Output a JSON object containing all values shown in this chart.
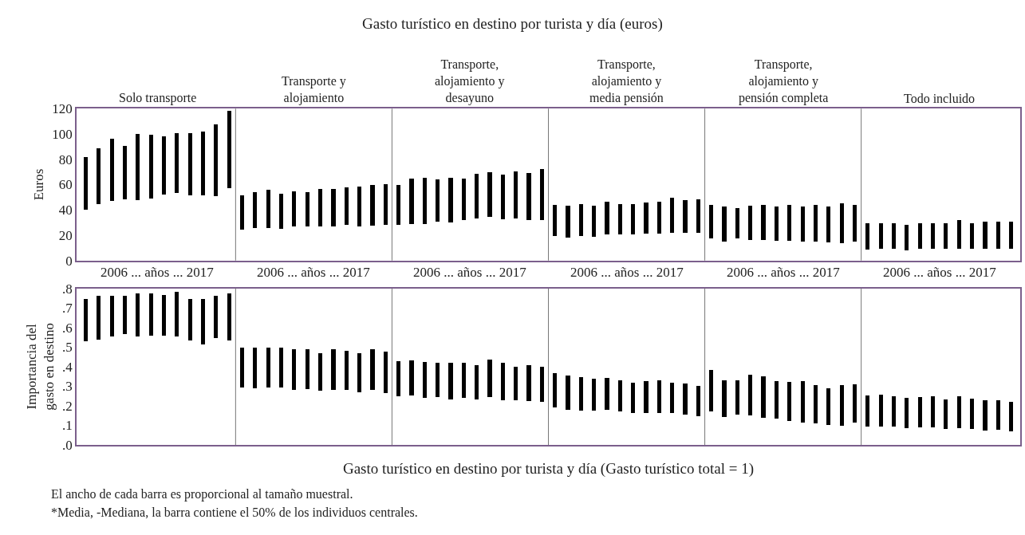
{
  "chart_data": [
    {
      "type": "bar",
      "title": "Gasto turístico en destino por turista y día (euros)",
      "ylabel": "Euros",
      "annotations": [
        "Solo transporte",
        "Transporte y alojamiento",
        "Transporte, alojamiento y desayuno",
        "Transporte, alojamiento y media pensión",
        "Transporte, alojamiento y pensión completa",
        "Todo incluido",
        "2006 ... años ... 2017",
        "2006 ... años ... 2017",
        "2006 ... años ... 2017",
        "2006 ... años ... 2017",
        "2006 ... años ... 2017",
        "2006 ... años ... 2017"
      ],
      "categories": [
        null,
        null,
        null,
        null,
        null,
        null,
        null,
        null,
        null,
        null,
        null,
        null,
        null,
        null,
        null,
        null,
        null,
        null,
        null,
        null,
        null,
        null,
        null,
        null,
        null,
        null,
        null,
        null,
        null,
        null,
        null,
        null,
        null,
        null,
        null,
        null,
        null,
        null,
        null,
        null,
        null,
        null,
        null,
        null,
        null,
        null,
        null,
        null,
        null,
        null,
        null,
        null,
        null,
        null,
        null,
        null,
        null,
        null,
        null,
        null,
        null,
        null,
        null,
        null,
        null,
        null,
        null,
        null,
        null,
        null,
        null,
        null
      ],
      "base": [
        40.1,
        44.2,
        46.7,
        47.9,
        47.7,
        48.5,
        52.2,
        53.2,
        51.6,
        51.6,
        50.8,
        57.1,
        24.0,
        25.2,
        25.8,
        25.0,
        26.6,
        26.6,
        26.8,
        26.6,
        27.9,
        26.8,
        27.6,
        27.9,
        28.3,
        28.7,
        28.7,
        30.3,
        30.1,
        31.5,
        32.8,
        34.0,
        32.6,
        33.2,
        31.9,
        31.7,
        19.0,
        17.8,
        19.5,
        18.8,
        20.5,
        20.3,
        20.3,
        20.9,
        20.9,
        21.5,
        21.5,
        21.5,
        17.6,
        14.5,
        17.0,
        16.0,
        16.0,
        15.4,
        15.4,
        14.5,
        14.5,
        14.3,
        13.3,
        14.5,
        8.4,
        8.8,
        9.4,
        7.8,
        8.8,
        9.2,
        8.8,
        9.4,
        9.2,
        8.8,
        8.8,
        8.8
      ],
      "values": [
        41.4,
        44.1,
        49.6,
        42.6,
        52.4,
        50.4,
        45.7,
        47.2,
        48.8,
        50.2,
        56.5,
        60.9,
        27.2,
        28.7,
        29.9,
        27.8,
        27.7,
        27.1,
        29.5,
        29.5,
        29.6,
        31.6,
        32.2,
        32.5,
        30.9,
        35.8,
        36.2,
        33.6,
        35.4,
        33.2,
        35.6,
        35.6,
        35.0,
        37.0,
        37.1,
        40.2,
        24.6,
        25.6,
        24.9,
        24.6,
        25.8,
        24.1,
        24.1,
        24.8,
        25.6,
        27.7,
        26.2,
        26.8,
        26.0,
        27.7,
        24.4,
        27.4,
        27.6,
        27.2,
        28.2,
        27.7,
        29.1,
        28.1,
        31.8,
        29.5,
        20.7,
        20.5,
        19.9,
        20.3,
        20.5,
        20.1,
        20.5,
        22.5,
        20.1,
        21.9,
        21.9,
        21.9
      ],
      "color": "#000000",
      "ylim": [
        0,
        120
      ],
      "yticks": [
        0,
        20,
        40,
        60,
        80,
        100,
        120
      ],
      "tick_labels": "y"
    },
    {
      "type": "bar",
      "ylabel": "Importancia del gasto en destino",
      "xlabel": "Gasto turístico en destino por turista y día (Gasto turístico total = 1)",
      "annotations": [
        "El ancho de cada barra es proporcional al tamaño muestral.",
        "*Media, -Mediana, la barra contiene el 50% de los individuos centrales."
      ],
      "categories": [
        null,
        null,
        null,
        null,
        null,
        null,
        null,
        null,
        null,
        null,
        null,
        null,
        null,
        null,
        null,
        null,
        null,
        null,
        null,
        null,
        null,
        null,
        null,
        null,
        null,
        null,
        null,
        null,
        null,
        null,
        null,
        null,
        null,
        null,
        null,
        null,
        null,
        null,
        null,
        null,
        null,
        null,
        null,
        null,
        null,
        null,
        null,
        null,
        null,
        null,
        null,
        null,
        null,
        null,
        null,
        null,
        null,
        null,
        null,
        null,
        null,
        null,
        null,
        null,
        null,
        null,
        null,
        null,
        null,
        null,
        null,
        null
      ],
      "base": [
        0.529,
        0.54,
        0.554,
        0.568,
        0.554,
        0.558,
        0.558,
        0.554,
        0.536,
        0.513,
        0.547,
        0.536,
        0.294,
        0.291,
        0.294,
        0.295,
        0.284,
        0.287,
        0.277,
        0.283,
        0.283,
        0.27,
        0.281,
        0.268,
        0.248,
        0.253,
        0.242,
        0.247,
        0.233,
        0.24,
        0.233,
        0.247,
        0.231,
        0.229,
        0.227,
        0.22,
        0.194,
        0.182,
        0.175,
        0.177,
        0.179,
        0.172,
        0.164,
        0.165,
        0.165,
        0.164,
        0.158,
        0.147,
        0.172,
        0.143,
        0.155,
        0.15,
        0.141,
        0.137,
        0.123,
        0.117,
        0.112,
        0.105,
        0.098,
        0.115,
        0.093,
        0.096,
        0.093,
        0.087,
        0.09,
        0.089,
        0.083,
        0.086,
        0.083,
        0.076,
        0.078,
        0.071
      ],
      "values": [
        0.218,
        0.223,
        0.209,
        0.195,
        0.223,
        0.219,
        0.208,
        0.228,
        0.213,
        0.236,
        0.217,
        0.241,
        0.204,
        0.207,
        0.204,
        0.203,
        0.207,
        0.204,
        0.192,
        0.206,
        0.199,
        0.198,
        0.21,
        0.21,
        0.182,
        0.181,
        0.183,
        0.173,
        0.186,
        0.179,
        0.175,
        0.19,
        0.191,
        0.172,
        0.183,
        0.18,
        0.175,
        0.175,
        0.171,
        0.163,
        0.164,
        0.158,
        0.154,
        0.161,
        0.167,
        0.154,
        0.158,
        0.156,
        0.213,
        0.19,
        0.177,
        0.209,
        0.211,
        0.189,
        0.2,
        0.21,
        0.196,
        0.186,
        0.208,
        0.195,
        0.161,
        0.161,
        0.156,
        0.156,
        0.154,
        0.16,
        0.149,
        0.163,
        0.153,
        0.152,
        0.15,
        0.149
      ],
      "color": "#000000",
      "ylim": [
        0,
        0.8
      ],
      "yticks": [
        {
          "value": 0,
          "label": ".0"
        },
        {
          "value": 0.1,
          "label": ".1"
        },
        {
          "value": 0.2,
          "label": ".2"
        },
        {
          "value": 0.3,
          "label": ".3"
        },
        {
          "value": 0.4,
          "label": ".4"
        },
        {
          "value": 0.5,
          "label": ".5"
        },
        {
          "value": 0.6,
          "label": ".6"
        },
        {
          "value": 0.7,
          "label": ".7"
        },
        {
          "value": 0.8,
          "label": ".8"
        }
      ],
      "tick_labels": "y"
    }
  ]
}
